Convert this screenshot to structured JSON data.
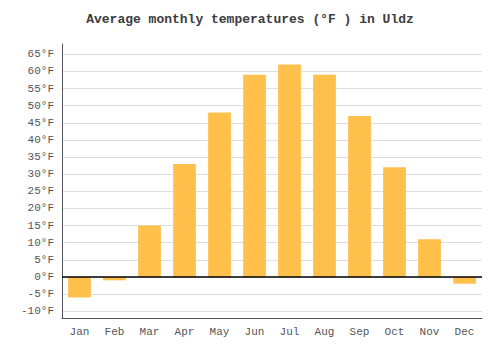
{
  "chart_data": {
    "type": "bar",
    "title": "Average monthly temperatures (°F ) in Uldz",
    "categories": [
      "Jan",
      "Feb",
      "Mar",
      "Apr",
      "May",
      "Jun",
      "Jul",
      "Aug",
      "Sep",
      "Oct",
      "Nov",
      "Dec"
    ],
    "values": [
      -6,
      -1,
      15,
      33,
      48,
      59,
      62,
      59,
      47,
      32,
      11,
      -2
    ],
    "color": "#FFC04C",
    "ylim": [
      -12,
      68
    ],
    "yticks": [
      {
        "value": -10,
        "label": "-10°F"
      },
      {
        "value": -5,
        "label": "-5°F"
      },
      {
        "value": 0,
        "label": "0°F"
      },
      {
        "value": 5,
        "label": "5°F"
      },
      {
        "value": 10,
        "label": "10°F"
      },
      {
        "value": 15,
        "label": "15°F"
      },
      {
        "value": 20,
        "label": "20°F"
      },
      {
        "value": 25,
        "label": "25°F"
      },
      {
        "value": 30,
        "label": "30°F"
      },
      {
        "value": 35,
        "label": "35°F"
      },
      {
        "value": 40,
        "label": "40°F"
      },
      {
        "value": 45,
        "label": "45°F"
      },
      {
        "value": 50,
        "label": "50°F"
      },
      {
        "value": 55,
        "label": "55°F"
      },
      {
        "value": 60,
        "label": "60°F"
      },
      {
        "value": 65,
        "label": "65°F"
      }
    ],
    "grid": true
  }
}
